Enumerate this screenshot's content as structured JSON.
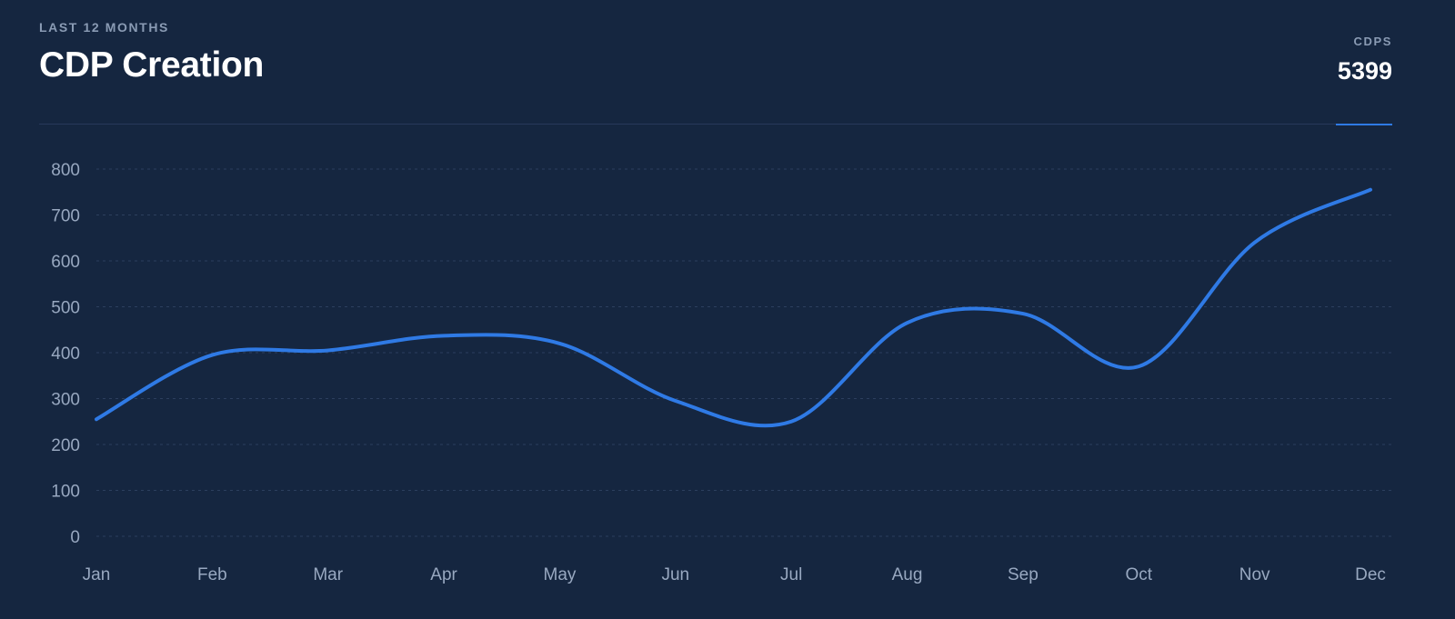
{
  "header": {
    "eyebrow": "LAST 12 MONTHS",
    "title": "CDP Creation"
  },
  "stat": {
    "label": "CDPS",
    "value": "5399"
  },
  "colors": {
    "background": "#152640",
    "line": "#2f7ae5",
    "grid": "#2c3f5e",
    "tick": "#98a8c0"
  },
  "chart_data": {
    "type": "line",
    "categories": [
      "Jan",
      "Feb",
      "Mar",
      "Apr",
      "May",
      "Jun",
      "Jul",
      "Aug",
      "Sep",
      "Oct",
      "Nov",
      "Dec"
    ],
    "series": [
      {
        "values": [
          255,
          395,
          405,
          437,
          420,
          295,
          250,
          465,
          485,
          370,
          640,
          755
        ]
      }
    ],
    "yticks": [
      0,
      100,
      200,
      300,
      400,
      500,
      600,
      700,
      800
    ],
    "ylim": [
      0,
      800
    ],
    "grid": true,
    "curve": "smooth"
  }
}
